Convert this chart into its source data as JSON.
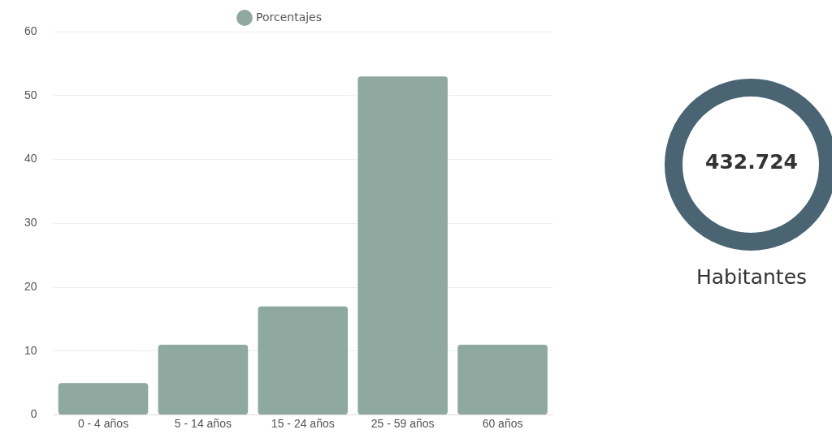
{
  "chart_data": [
    {
      "type": "bar",
      "categories": [
        "0 - 4 años",
        "5 - 14 años",
        "15 - 24 años",
        "25 - 59 años",
        "60 años"
      ],
      "series": [
        {
          "name": "Porcentajes",
          "color": "#8fa8a0",
          "values": [
            5,
            11,
            17,
            53,
            11
          ]
        }
      ],
      "ylim": [
        0,
        60
      ],
      "yticks": [
        0,
        10,
        20,
        30,
        40,
        50,
        60
      ],
      "grid": "y",
      "legend": "top"
    },
    {
      "type": "other",
      "annotations": [
        "432.724",
        "Habitantes"
      ]
    }
  ]
}
